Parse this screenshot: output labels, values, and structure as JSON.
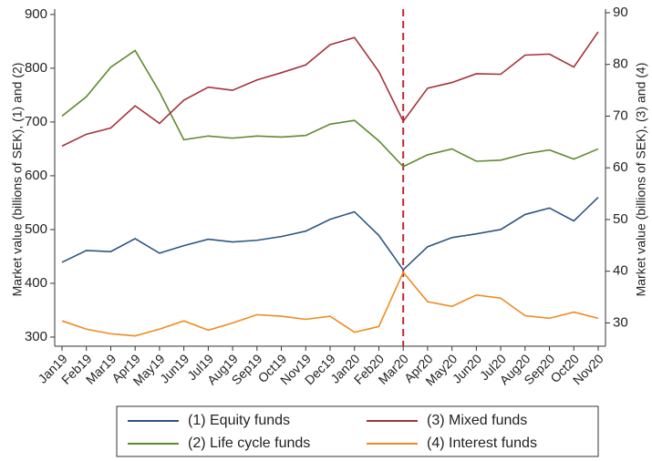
{
  "chart_data": {
    "type": "line",
    "y_label": "Market value (billions of SEK), (1) and (2)",
    "y2_label": "Market value (billions of SEK), (3) and (4)",
    "categories": [
      "Jan19",
      "Feb19",
      "Mar19",
      "Apr19",
      "May19",
      "Jun19",
      "Jul19",
      "Aug19",
      "Sep19",
      "Oct19",
      "Nov19",
      "Dec19",
      "Jan20",
      "Feb20",
      "Mar20",
      "Apr20",
      "May20",
      "Jun20",
      "Jul20",
      "Aug20",
      "Sep20",
      "Oct20",
      "Nov20"
    ],
    "series": [
      {
        "name": "(1) Equity funds",
        "color": "#2b5680",
        "values": [
          439,
          461,
          459,
          483,
          456,
          470,
          482,
          477,
          480,
          487,
          497,
          519,
          533,
          489,
          425,
          468,
          485,
          492,
          500,
          528,
          540,
          516,
          560
        ]
      },
      {
        "name": "(2) Life cycle funds",
        "color": "#5e8a30",
        "values": [
          711,
          747,
          802,
          833,
          756,
          667,
          674,
          670,
          674,
          672,
          675,
          696,
          703,
          665,
          617,
          639,
          650,
          627,
          629,
          641,
          648,
          631,
          650
        ]
      },
      {
        "name": "(3) Mixed funds",
        "color": "#a5323b",
        "axis": "y2",
        "values": [
          64.2,
          66.5,
          67.7,
          72.0,
          68.6,
          73.1,
          75.6,
          75.0,
          77.0,
          78.4,
          79.9,
          83.8,
          85.2,
          78.6,
          69.0,
          75.4,
          76.5,
          78.2,
          78.1,
          81.8,
          82.0,
          79.5,
          86.3
        ]
      },
      {
        "name": "(4) Interest funds",
        "color": "#ef8b20",
        "axis": "y2",
        "values": [
          30.4,
          28.8,
          27.9,
          27.5,
          28.8,
          30.4,
          28.6,
          30.0,
          31.6,
          31.3,
          30.7,
          31.3,
          28.2,
          29.3,
          39.8,
          34.1,
          33.2,
          35.4,
          34.8,
          31.4,
          30.9,
          32.1,
          30.9
        ]
      }
    ],
    "ylim": [
      283,
      910
    ],
    "yticks": [
      300,
      400,
      500,
      600,
      700,
      800,
      900
    ],
    "y2lim": [
      25.5,
      90.7
    ],
    "y2ticks": [
      30,
      40,
      50,
      60,
      70,
      80,
      90
    ],
    "vline": {
      "x": "Mar20",
      "color": "#c0272d"
    },
    "grid": false
  }
}
